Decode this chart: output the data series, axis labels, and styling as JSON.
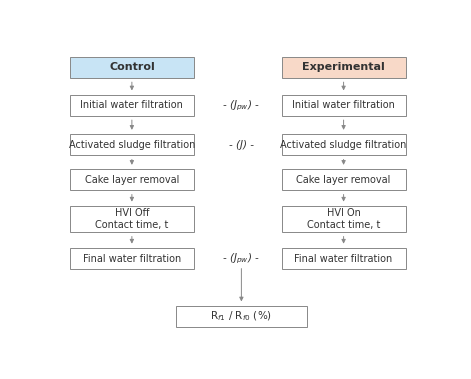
{
  "title_left": "Control",
  "title_right": "Experimental",
  "title_left_color": "#c8e4f5",
  "title_right_color": "#f8d9c8",
  "boxes_left": [
    "Initial water filtration",
    "Activated sludge filtration",
    "Cake layer removal",
    "HVI Off\nContact time, t",
    "Final water filtration"
  ],
  "boxes_right": [
    "Initial water filtration",
    "Activated sludge filtration",
    "Cake layer removal",
    "HVI On\nContact time, t",
    "Final water filtration"
  ],
  "middle_labels": [
    "- (J$_{pw}$) -",
    "- (J) -",
    "",
    "",
    "- (J$_{pw}$) -"
  ],
  "bottom_box": "R$_{f1}$ / R$_{f0}$ (%)",
  "box_color": "#ffffff",
  "box_border": "#888888",
  "text_color": "#333333",
  "arrow_color": "#888888",
  "background_color": "#ffffff",
  "fig_width": 4.71,
  "fig_height": 3.79,
  "dpi": 100
}
